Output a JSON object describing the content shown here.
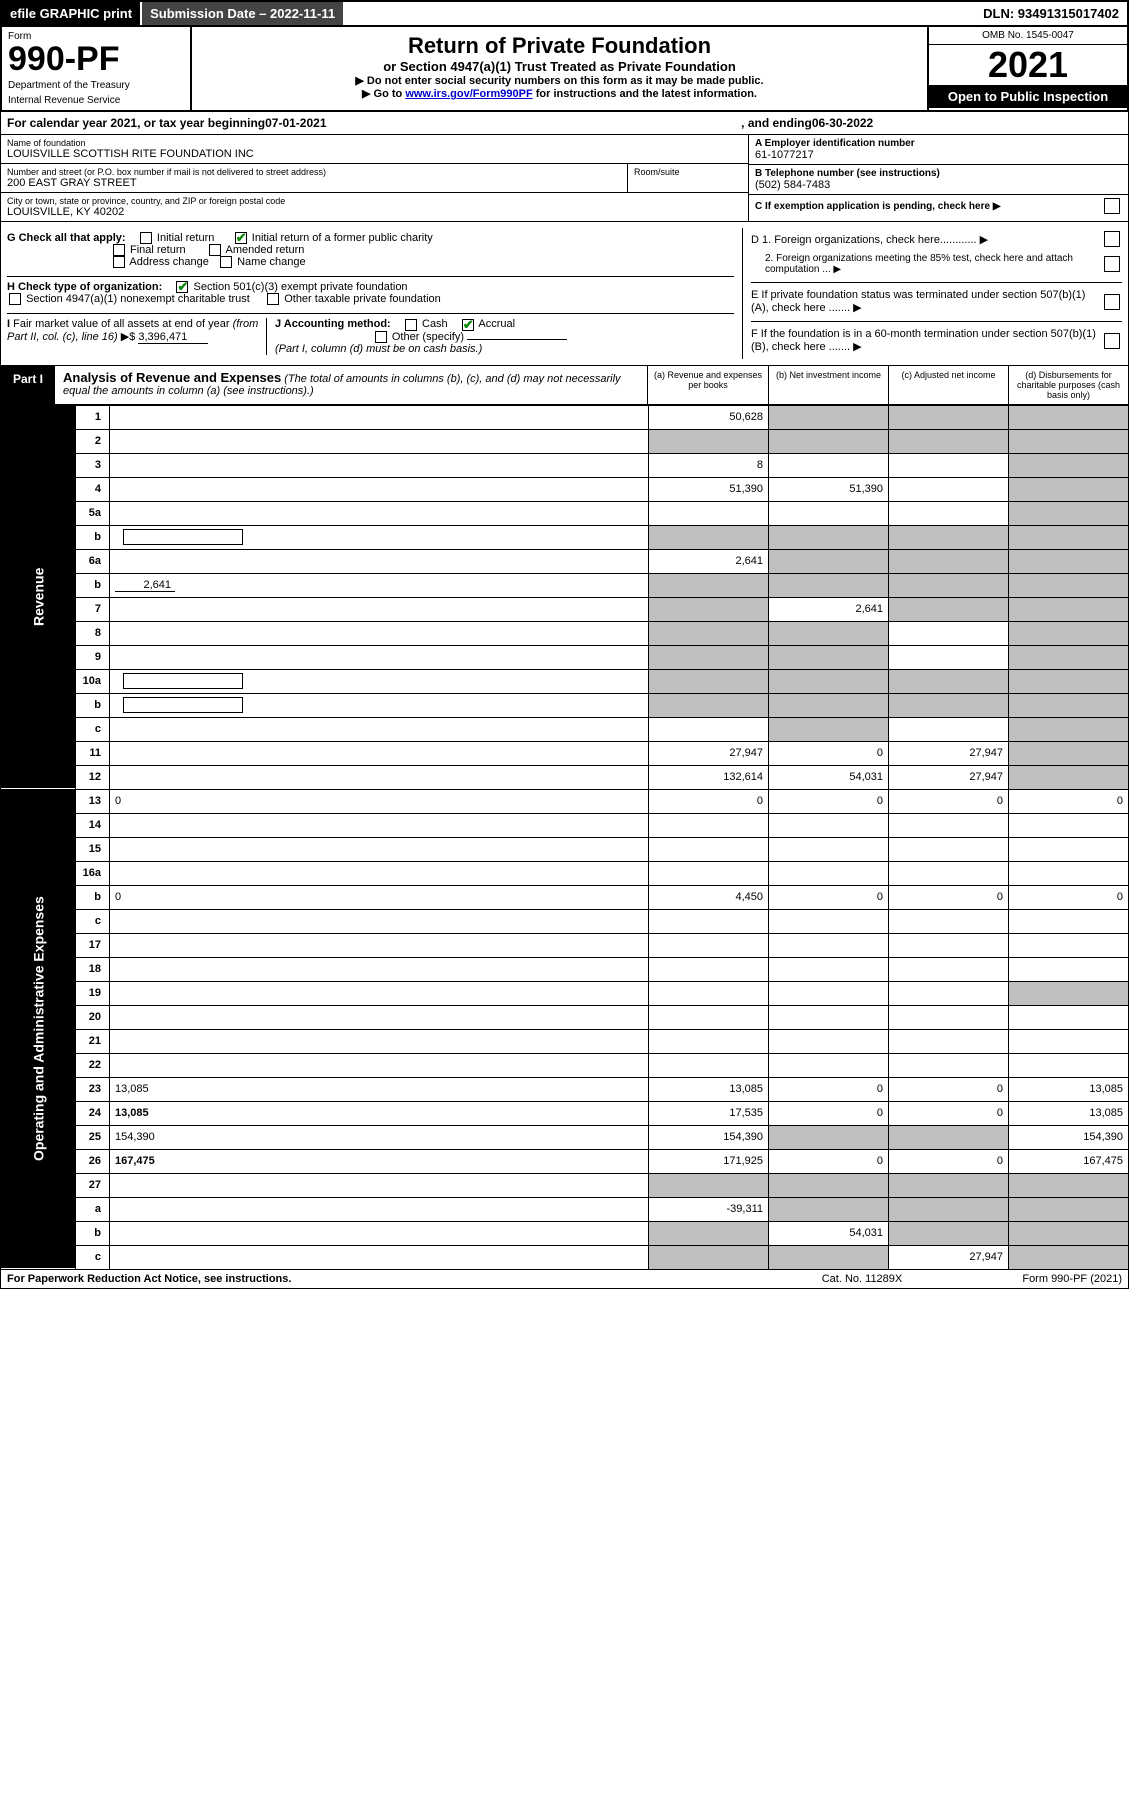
{
  "top": {
    "efile": "efile GRAPHIC print",
    "subdate_label": "Submission Date – 2022-11-11",
    "dln": "DLN: 93491315017402"
  },
  "header": {
    "form_label": "Form",
    "form_no": "990-PF",
    "dept1": "Department of the Treasury",
    "dept2": "Internal Revenue Service",
    "title": "Return of Private Foundation",
    "subtitle": "or Section 4947(a)(1) Trust Treated as Private Foundation",
    "note1": "▶ Do not enter social security numbers on this form as it may be made public.",
    "note2_pre": "▶ Go to ",
    "note2_link": "www.irs.gov/Form990PF",
    "note2_post": " for instructions and the latest information.",
    "omb": "OMB No. 1545-0047",
    "year": "2021",
    "open": "Open to Public Inspection"
  },
  "calendar": {
    "pre": "For calendar year 2021, or tax year beginning ",
    "begin": "07-01-2021",
    "mid": " , and ending ",
    "end": "06-30-2022"
  },
  "info": {
    "name_label": "Name of foundation",
    "name": "LOUISVILLE SCOTTISH RITE FOUNDATION INC",
    "addr_label": "Number and street (or P.O. box number if mail is not delivered to street address)",
    "addr": "200 EAST GRAY STREET",
    "room_label": "Room/suite",
    "room": "",
    "city_label": "City or town, state or province, country, and ZIP or foreign postal code",
    "city": "LOUISVILLE, KY  40202",
    "ein_label": "A Employer identification number",
    "ein": "61-1077217",
    "phone_label": "B Telephone number (see instructions)",
    "phone": "(502) 584-7483",
    "c_label": "C If exemption application is pending, check here ▶",
    "d1": "D 1. Foreign organizations, check here............ ▶",
    "d2": "2. Foreign organizations meeting the 85% test, check here and attach computation ... ▶",
    "e_label": "E  If private foundation status was terminated under section 507(b)(1)(A), check here ....... ▶",
    "f_label": "F  If the foundation is in a 60-month termination under section 507(b)(1)(B), check here ....... ▶"
  },
  "g": {
    "label": "G Check all that apply:",
    "opts": [
      "Initial return",
      "Final return",
      "Address change",
      "Initial return of a former public charity",
      "Amended return",
      "Name change"
    ],
    "checked": [
      false,
      false,
      false,
      true,
      false,
      false
    ]
  },
  "h": {
    "label": "H Check type of organization:",
    "opt1": "Section 501(c)(3) exempt private foundation",
    "opt1_checked": true,
    "opt2": "Section 4947(a)(1) nonexempt charitable trust",
    "opt2_checked": false,
    "opt3": "Other taxable private foundation",
    "opt3_checked": false
  },
  "i": {
    "label": "I Fair market value of all assets at end of year (from Part II, col. (c), line 16) ▶$ ",
    "value": "3,396,471"
  },
  "j": {
    "label": "J Accounting method:",
    "cash": "Cash",
    "cash_checked": false,
    "accrual": "Accrual",
    "accrual_checked": true,
    "other": "Other (specify)",
    "note": "(Part I, column (d) must be on cash basis.)"
  },
  "part1": {
    "tab": "Part I",
    "title": "Analysis of Revenue and Expenses",
    "title_note": " (The total of amounts in columns (b), (c), and (d) may not necessarily equal the amounts in column (a) (see instructions).)",
    "col_a": "(a)   Revenue and expenses per books",
    "col_b": "(b)   Net investment income",
    "col_c": "(c)   Adjusted net income",
    "col_d": "(d)   Disbursements for charitable purposes (cash basis only)"
  },
  "side_labels": {
    "rev": "Revenue",
    "exp": "Operating and Administrative Expenses"
  },
  "rows": [
    {
      "n": "1",
      "d": "",
      "a": "50,628",
      "b": "",
      "c": "",
      "shade": [
        "b",
        "c",
        "d"
      ]
    },
    {
      "n": "2",
      "d": "",
      "a": "",
      "b": "",
      "c": "",
      "shade": [
        "a",
        "b",
        "c",
        "d"
      ]
    },
    {
      "n": "3",
      "d": "",
      "a": "8",
      "b": "",
      "c": "",
      "shade": [
        "d"
      ]
    },
    {
      "n": "4",
      "d": "",
      "a": "51,390",
      "b": "51,390",
      "c": "",
      "shade": [
        "d"
      ]
    },
    {
      "n": "5a",
      "d": "",
      "a": "",
      "b": "",
      "c": "",
      "shade": [
        "d"
      ]
    },
    {
      "n": "b",
      "d": "",
      "a": "",
      "b": "",
      "c": "",
      "shade": [
        "a",
        "b",
        "c",
        "d"
      ],
      "inset": true
    },
    {
      "n": "6a",
      "d": "",
      "a": "2,641",
      "b": "",
      "c": "",
      "shade": [
        "b",
        "c",
        "d"
      ]
    },
    {
      "n": "b",
      "d": "",
      "extra": "2,641",
      "a": "",
      "b": "",
      "c": "",
      "shade": [
        "a",
        "b",
        "c",
        "d"
      ]
    },
    {
      "n": "7",
      "d": "",
      "a": "",
      "b": "2,641",
      "c": "",
      "shade": [
        "a",
        "c",
        "d"
      ]
    },
    {
      "n": "8",
      "d": "",
      "a": "",
      "b": "",
      "c": "",
      "shade": [
        "a",
        "b",
        "d"
      ]
    },
    {
      "n": "9",
      "d": "",
      "a": "",
      "b": "",
      "c": "",
      "shade": [
        "a",
        "b",
        "d"
      ]
    },
    {
      "n": "10a",
      "d": "",
      "a": "",
      "b": "",
      "c": "",
      "shade": [
        "a",
        "b",
        "c",
        "d"
      ],
      "inset": true
    },
    {
      "n": "b",
      "d": "",
      "a": "",
      "b": "",
      "c": "",
      "shade": [
        "a",
        "b",
        "c",
        "d"
      ],
      "inset": true
    },
    {
      "n": "c",
      "d": "",
      "a": "",
      "b": "",
      "c": "",
      "shade": [
        "b",
        "d"
      ]
    },
    {
      "n": "11",
      "d": "",
      "a": "27,947",
      "b": "0",
      "c": "27,947",
      "shade": [
        "d"
      ]
    },
    {
      "n": "12",
      "d": "",
      "a": "132,614",
      "b": "54,031",
      "c": "27,947",
      "shade": [
        "d"
      ],
      "bold": true
    }
  ],
  "exp_rows": [
    {
      "n": "13",
      "d": "0",
      "a": "0",
      "b": "0",
      "c": "0"
    },
    {
      "n": "14",
      "d": "",
      "a": "",
      "b": "",
      "c": ""
    },
    {
      "n": "15",
      "d": "",
      "a": "",
      "b": "",
      "c": ""
    },
    {
      "n": "16a",
      "d": "",
      "a": "",
      "b": "",
      "c": ""
    },
    {
      "n": "b",
      "d": "0",
      "a": "4,450",
      "b": "0",
      "c": "0"
    },
    {
      "n": "c",
      "d": "",
      "a": "",
      "b": "",
      "c": ""
    },
    {
      "n": "17",
      "d": "",
      "a": "",
      "b": "",
      "c": ""
    },
    {
      "n": "18",
      "d": "",
      "a": "",
      "b": "",
      "c": ""
    },
    {
      "n": "19",
      "d": "",
      "a": "",
      "b": "",
      "c": "",
      "shade": [
        "d"
      ]
    },
    {
      "n": "20",
      "d": "",
      "a": "",
      "b": "",
      "c": ""
    },
    {
      "n": "21",
      "d": "",
      "a": "",
      "b": "",
      "c": ""
    },
    {
      "n": "22",
      "d": "",
      "a": "",
      "b": "",
      "c": ""
    },
    {
      "n": "23",
      "d": "13,085",
      "a": "13,085",
      "b": "0",
      "c": "0"
    },
    {
      "n": "24",
      "d": "13,085",
      "a": "17,535",
      "b": "0",
      "c": "0",
      "bold": true
    },
    {
      "n": "25",
      "d": "154,390",
      "a": "154,390",
      "b": "",
      "c": "",
      "shade": [
        "b",
        "c"
      ]
    },
    {
      "n": "26",
      "d": "167,475",
      "a": "171,925",
      "b": "0",
      "c": "0",
      "bold": true
    },
    {
      "n": "27",
      "d": "",
      "a": "",
      "b": "",
      "c": "",
      "shade": [
        "a",
        "b",
        "c",
        "d"
      ]
    },
    {
      "n": "a",
      "d": "",
      "a": "-39,311",
      "b": "",
      "c": "",
      "shade": [
        "b",
        "c",
        "d"
      ],
      "bold": true
    },
    {
      "n": "b",
      "d": "",
      "a": "",
      "b": "54,031",
      "c": "",
      "shade": [
        "a",
        "c",
        "d"
      ],
      "bold": true
    },
    {
      "n": "c",
      "d": "",
      "a": "",
      "b": "",
      "c": "27,947",
      "shade": [
        "a",
        "b",
        "d"
      ],
      "bold": true
    }
  ],
  "footer": {
    "left": "For Paperwork Reduction Act Notice, see instructions.",
    "mid": "Cat. No. 11289X",
    "right": "Form 990-PF (2021)"
  },
  "colors": {
    "shade": "#bfbfbf",
    "check": "#0a8a0a",
    "link": "#0000cc"
  }
}
